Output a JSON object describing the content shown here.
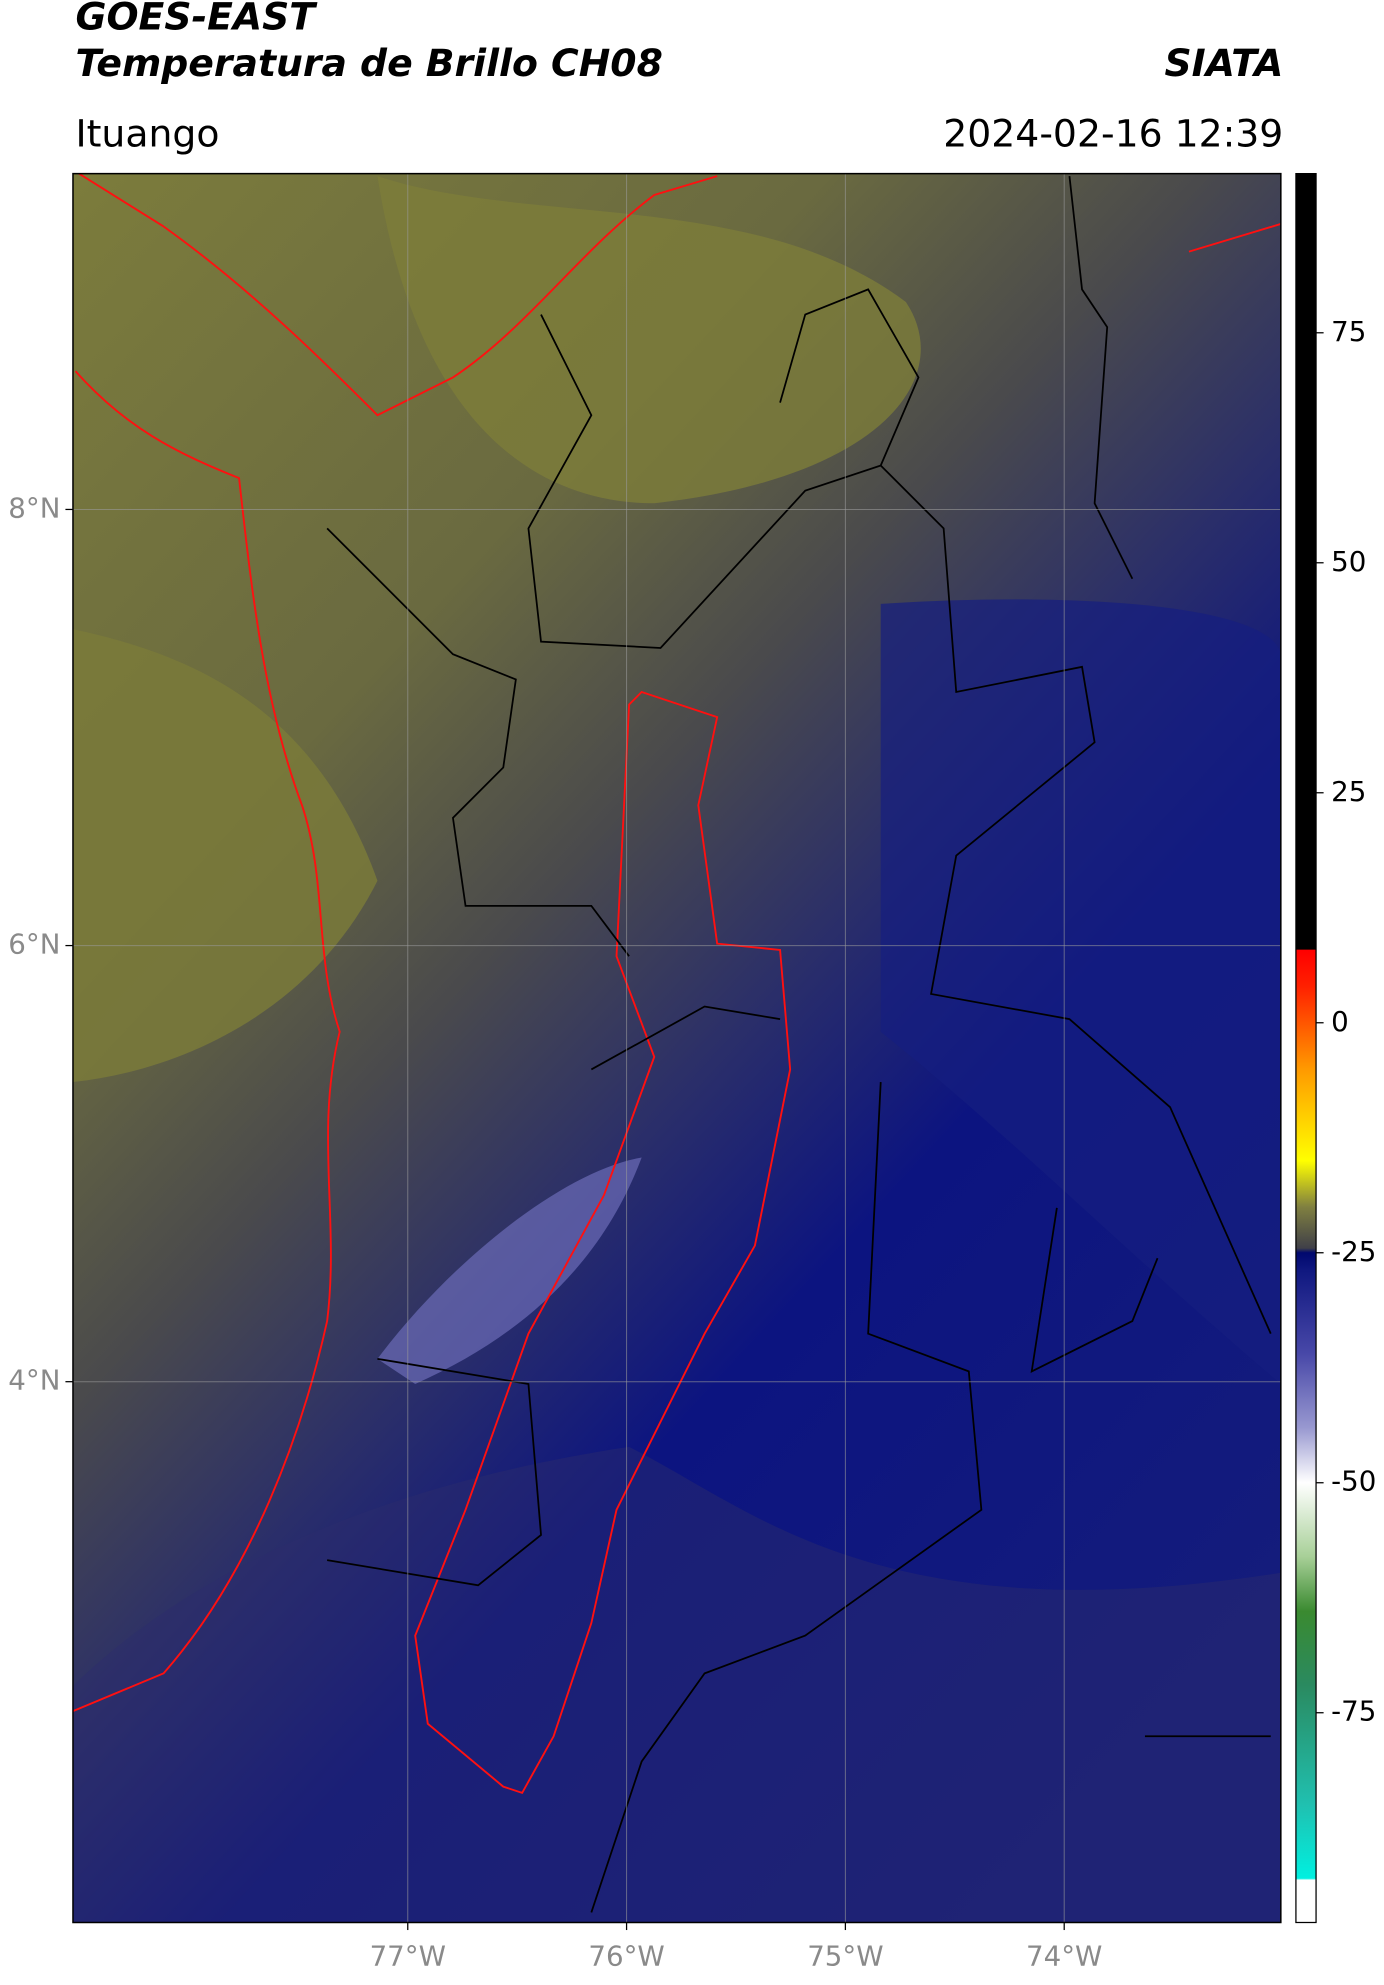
{
  "header": {
    "title": "GOES-EAST",
    "subtitle": "Temperatura de Brillo CH08",
    "brand": "SIATA",
    "location": "Ituango",
    "datetime": "2024-02-16 12:39"
  },
  "map": {
    "lonlim": [
      -78.53,
      -73.01
    ],
    "latlim": [
      1.52,
      9.54
    ],
    "lonticks": [
      {
        "value": -77,
        "label": "77°W"
      },
      {
        "value": -76,
        "label": "76°W"
      },
      {
        "value": -75,
        "label": "75°W"
      },
      {
        "value": -74,
        "label": "74°W"
      }
    ],
    "latticks": [
      {
        "value": 8,
        "label": "8°N"
      },
      {
        "value": 6,
        "label": "6°N"
      },
      {
        "value": 4,
        "label": "4°N"
      }
    ],
    "grid": true
  },
  "colorbar": {
    "lim": [
      -97.8,
      92.3
    ],
    "ticks": [
      75,
      50,
      25,
      0,
      -25,
      -50,
      -75
    ],
    "colormap": [
      {
        "value": -97.8,
        "color": "#ffffff"
      },
      {
        "value": -93.2,
        "color": "#ffffff"
      },
      {
        "value": -93,
        "color": "#00f0e0"
      },
      {
        "value": -85,
        "color": "#20c0b0"
      },
      {
        "value": -72,
        "color": "#2a8a60"
      },
      {
        "value": -64,
        "color": "#3a8a30"
      },
      {
        "value": -58,
        "color": "#a8d098"
      },
      {
        "value": -50,
        "color": "#ffffff"
      },
      {
        "value": -44,
        "color": "#9898d0"
      },
      {
        "value": -36,
        "color": "#4848a8"
      },
      {
        "value": -27,
        "color": "#101880"
      },
      {
        "value": -25,
        "color": "#00086e"
      },
      {
        "value": -24.5,
        "color": "#404048"
      },
      {
        "value": -20,
        "color": "#808040"
      },
      {
        "value": -15,
        "color": "#ffff00"
      },
      {
        "value": -5,
        "color": "#ff9900"
      },
      {
        "value": 4,
        "color": "#ff2000"
      },
      {
        "value": 7.9,
        "color": "#ff0000"
      },
      {
        "value": 8,
        "color": "#000000"
      },
      {
        "value": 92.3,
        "color": "#000000"
      }
    ]
  }
}
